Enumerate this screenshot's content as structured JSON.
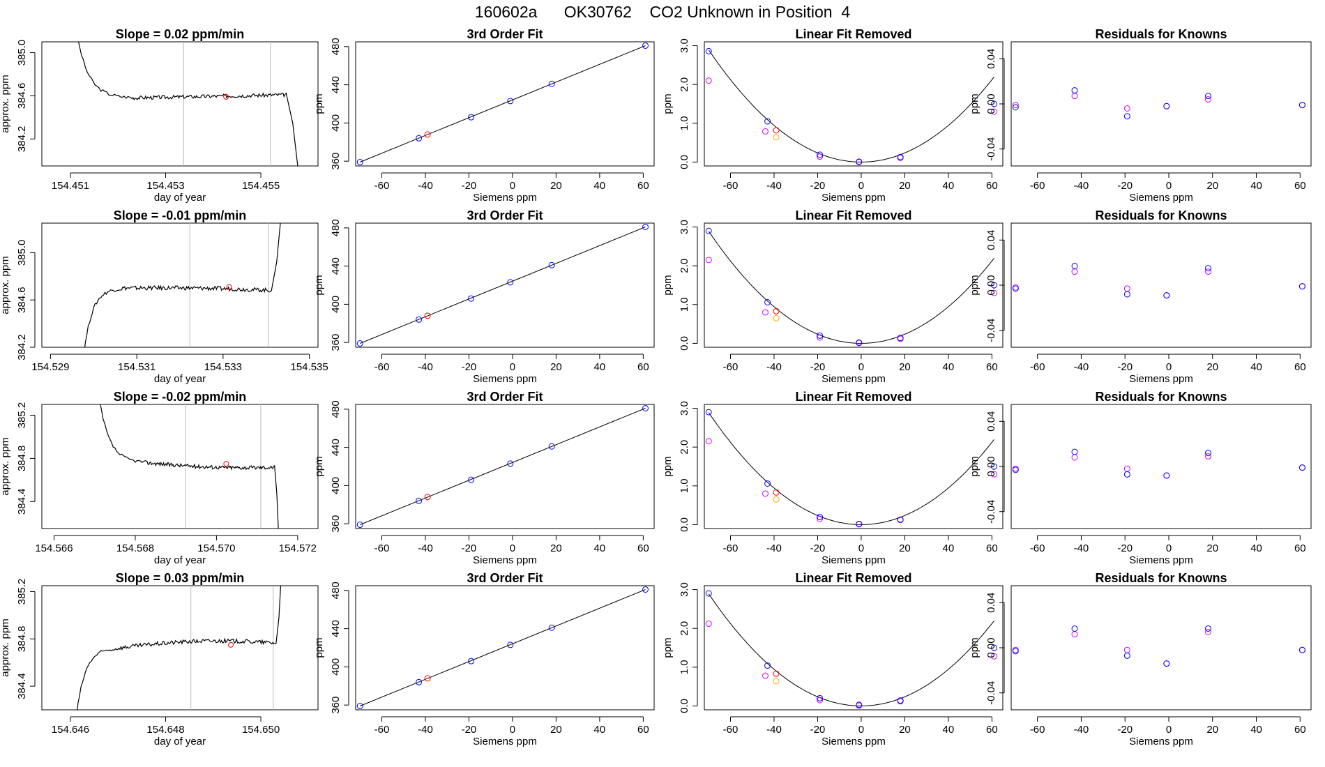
{
  "figure": {
    "title": "160602a      OK30762    CO2 Unknown in Position  4"
  },
  "colors": {
    "known": "#0000ff",
    "unknown": "#ff0000",
    "known_first_run": "#d400ff",
    "unknown_first_run": "#ffa500",
    "trace": "#000000",
    "window_line": "#bbbbbb"
  },
  "chart_data": [
    {
      "type": "line",
      "row": 1,
      "col": 1,
      "title": "Slope =  0.02  ppm/min",
      "xlabel": "day of year",
      "ylabel": "approx. ppm",
      "xlim": [
        154.4504,
        154.4562
      ],
      "ylim": [
        383.95,
        385.1
      ],
      "xticks": [
        154.451,
        154.453,
        154.455
      ],
      "xtick_labels": [
        "154.451",
        "154.453",
        "154.455"
      ],
      "yticks": [
        384.2,
        384.6,
        385.0
      ],
      "ytick_labels": [
        "384.2",
        "384.6",
        "385.0"
      ],
      "vlines": [
        154.45338,
        154.4552
      ],
      "marker": {
        "x": 154.45427,
        "y": 384.59
      },
      "trace_shape": "descend",
      "trace": {
        "start": 154.45103,
        "settle": 154.45225,
        "level": 384.58,
        "rise": 0.0,
        "end": 154.45553,
        "end_level": 384.61,
        "exit": 154.45588
      }
    },
    {
      "type": "line",
      "row": 2,
      "col": 1,
      "title": "Slope =  -0.01  ppm/min",
      "xlabel": "day of year",
      "ylabel": "approx. ppm",
      "xlim": [
        154.5288,
        154.5352
      ],
      "ylim": [
        384.2,
        385.25
      ],
      "xticks": [
        154.529,
        154.531,
        154.533,
        154.535
      ],
      "xtick_labels": [
        "154.529",
        "154.531",
        "154.533",
        "154.535"
      ],
      "yticks": [
        384.2,
        384.6,
        385.0
      ],
      "ytick_labels": [
        "384.2",
        "384.6",
        "385.0"
      ],
      "vlines": [
        154.53223,
        154.53405
      ],
      "marker": {
        "x": 154.53314,
        "y": 384.71
      },
      "trace_shape": "ascend",
      "trace": {
        "start": 154.52968,
        "settle": 154.53065,
        "level": 384.7,
        "rise": 0.01,
        "end": 154.53412,
        "end_level": 384.68,
        "exit": 154.53443
      }
    },
    {
      "type": "line",
      "row": 3,
      "col": 1,
      "title": "Slope =  -0.02  ppm/min",
      "xlabel": "day of year",
      "ylabel": "approx. ppm",
      "xlim": [
        154.5657,
        154.5725
      ],
      "ylim": [
        384.15,
        385.3
      ],
      "xticks": [
        154.566,
        154.568,
        154.57,
        154.572
      ],
      "xtick_labels": [
        "154.566",
        "154.568",
        "154.570",
        "154.572"
      ],
      "yticks": [
        384.4,
        384.8,
        385.2
      ],
      "ytick_labels": [
        "384.4",
        "384.8",
        "385.2"
      ],
      "vlines": [
        154.56924,
        154.57109
      ],
      "marker": {
        "x": 154.57024,
        "y": 384.75
      },
      "trace_shape": "descend",
      "trace": {
        "start": 154.567,
        "settle": 154.56825,
        "level": 384.76,
        "rise": -0.02,
        "end": 154.57143,
        "end_level": 384.72,
        "exit": 154.57157
      }
    },
    {
      "type": "line",
      "row": 4,
      "col": 1,
      "title": "Slope =  0.03  ppm/min",
      "xlabel": "day of year",
      "ylabel": "approx. ppm",
      "xlim": [
        154.6454,
        154.6512
      ],
      "ylim": [
        384.2,
        385.25
      ],
      "xticks": [
        154.646,
        154.648,
        154.65
      ],
      "xtick_labels": [
        "154.646",
        "154.648",
        "154.650"
      ],
      "yticks": [
        384.4,
        384.8,
        385.2
      ],
      "ytick_labels": [
        "384.4",
        "384.8",
        "385.2"
      ],
      "vlines": [
        154.64853,
        154.65026
      ],
      "marker": {
        "x": 154.64937,
        "y": 384.75
      },
      "trace_shape": "ascend",
      "trace": {
        "start": 154.64604,
        "settle": 154.64695,
        "level": 384.72,
        "rise": 0.04,
        "end": 154.65032,
        "end_level": 384.76,
        "exit": 154.65047
      }
    },
    {
      "type": "scatter",
      "row": 1,
      "col": 2,
      "title": "3rd Order Fit",
      "xlabel": "Siemens ppm",
      "ylabel": "ppm",
      "xlim": [
        -72,
        65
      ],
      "ylim": [
        355,
        485
      ],
      "xticks": [
        -60,
        -40,
        -20,
        0,
        20,
        40,
        60
      ],
      "yticks": [
        360,
        400,
        440,
        480
      ],
      "fit_line": {
        "x": [
          -70,
          61
        ],
        "y": [
          359,
          481
        ]
      },
      "series": [
        {
          "role": "known",
          "x": [
            -70,
            -43,
            -19,
            -1,
            18,
            61
          ],
          "y": [
            359,
            384,
            406,
            423,
            441,
            481
          ]
        },
        {
          "role": "unknown",
          "x": [
            -39
          ],
          "y": [
            388
          ]
        }
      ]
    },
    {
      "type": "scatter",
      "row": 2,
      "col": 2,
      "title": "3rd Order Fit",
      "xlabel": "Siemens ppm",
      "ylabel": "ppm",
      "xlim": [
        -72,
        65
      ],
      "ylim": [
        355,
        485
      ],
      "xticks": [
        -60,
        -40,
        -20,
        0,
        20,
        40,
        60
      ],
      "yticks": [
        360,
        400,
        440,
        480
      ],
      "fit_line": {
        "x": [
          -70,
          61
        ],
        "y": [
          359,
          481
        ]
      },
      "series": [
        {
          "role": "known",
          "x": [
            -70,
            -43,
            -19,
            -1,
            18,
            61
          ],
          "y": [
            359,
            384,
            406,
            423,
            441,
            481
          ]
        },
        {
          "role": "unknown",
          "x": [
            -39
          ],
          "y": [
            388
          ]
        }
      ]
    },
    {
      "type": "scatter",
      "row": 3,
      "col": 2,
      "title": "3rd Order Fit",
      "xlabel": "Siemens ppm",
      "ylabel": "ppm",
      "xlim": [
        -72,
        65
      ],
      "ylim": [
        355,
        485
      ],
      "xticks": [
        -60,
        -40,
        -20,
        0,
        20,
        40,
        60
      ],
      "yticks": [
        360,
        400,
        440,
        480
      ],
      "fit_line": {
        "x": [
          -70,
          61
        ],
        "y": [
          359,
          481
        ]
      },
      "series": [
        {
          "role": "known",
          "x": [
            -70,
            -43,
            -19,
            -1,
            18,
            61
          ],
          "y": [
            359,
            384,
            406,
            423,
            441,
            481
          ]
        },
        {
          "role": "unknown",
          "x": [
            -39
          ],
          "y": [
            388
          ]
        }
      ]
    },
    {
      "type": "scatter",
      "row": 4,
      "col": 2,
      "title": "3rd Order Fit",
      "xlabel": "Siemens ppm",
      "ylabel": "ppm",
      "xlim": [
        -72,
        65
      ],
      "ylim": [
        355,
        485
      ],
      "xticks": [
        -60,
        -40,
        -20,
        0,
        20,
        40,
        60
      ],
      "yticks": [
        360,
        400,
        440,
        480
      ],
      "fit_line": {
        "x": [
          -70,
          61
        ],
        "y": [
          359,
          481
        ]
      },
      "series": [
        {
          "role": "known",
          "x": [
            -70,
            -43,
            -19,
            -1,
            18,
            61
          ],
          "y": [
            359,
            384,
            406,
            423,
            441,
            481
          ]
        },
        {
          "role": "unknown",
          "x": [
            -39
          ],
          "y": [
            388
          ]
        }
      ]
    },
    {
      "type": "scatter",
      "row": 1,
      "col": 3,
      "title": "Linear Fit Removed",
      "xlabel": "Siemens ppm",
      "ylabel": "ppm",
      "xlim": [
        -72,
        65
      ],
      "ylim": [
        -0.1,
        3.1
      ],
      "xticks": [
        -60,
        -40,
        -20,
        0,
        20,
        40,
        60
      ],
      "yticks": [
        0.0,
        1.0,
        2.0,
        3.0
      ],
      "ytick_labels": [
        "0.0",
        "1.0",
        "2.0",
        "3.0"
      ],
      "fit_curve": {
        "type": "quadratic",
        "vertex": [
          0,
          0.0
        ],
        "a": 0.00059
      },
      "series": [
        {
          "role": "known",
          "x": [
            -70,
            -43,
            -19,
            -1,
            18,
            61
          ],
          "y": [
            2.86,
            1.05,
            0.19,
            0.01,
            0.13,
            1.5
          ]
        },
        {
          "role": "unknown",
          "x": [
            -39
          ],
          "y": [
            0.82
          ]
        },
        {
          "role": "known_first_run",
          "x": [
            -70,
            -44,
            -19,
            -1,
            18,
            61
          ],
          "y": [
            2.1,
            0.79,
            0.14,
            0.0,
            0.11,
            1.3
          ]
        },
        {
          "role": "unknown_first_run",
          "x": [
            -39
          ],
          "y": [
            0.64
          ]
        }
      ]
    },
    {
      "type": "scatter",
      "row": 2,
      "col": 3,
      "title": "Linear Fit Removed",
      "xlabel": "Siemens ppm",
      "ylabel": "ppm",
      "xlim": [
        -72,
        65
      ],
      "ylim": [
        -0.1,
        3.1
      ],
      "xticks": [
        -60,
        -40,
        -20,
        0,
        20,
        40,
        60
      ],
      "yticks": [
        0.0,
        1.0,
        2.0,
        3.0
      ],
      "ytick_labels": [
        "0.0",
        "1.0",
        "2.0",
        "3.0"
      ],
      "fit_curve": {
        "type": "quadratic",
        "vertex": [
          0,
          0.0
        ],
        "a": 0.00059
      },
      "series": [
        {
          "role": "known",
          "x": [
            -70,
            -43,
            -19,
            -1,
            18,
            61
          ],
          "y": [
            2.9,
            1.06,
            0.2,
            0.02,
            0.14,
            1.5
          ]
        },
        {
          "role": "unknown",
          "x": [
            -39
          ],
          "y": [
            0.83
          ]
        },
        {
          "role": "known_first_run",
          "x": [
            -70,
            -44,
            -19,
            -1,
            18,
            61
          ],
          "y": [
            2.15,
            0.8,
            0.15,
            0.01,
            0.12,
            1.3
          ]
        },
        {
          "role": "unknown_first_run",
          "x": [
            -39
          ],
          "y": [
            0.65
          ]
        }
      ]
    },
    {
      "type": "scatter",
      "row": 3,
      "col": 3,
      "title": "Linear Fit Removed",
      "xlabel": "Siemens ppm",
      "ylabel": "ppm",
      "xlim": [
        -72,
        65
      ],
      "ylim": [
        -0.1,
        3.1
      ],
      "xticks": [
        -60,
        -40,
        -20,
        0,
        20,
        40,
        60
      ],
      "yticks": [
        0.0,
        1.0,
        2.0,
        3.0
      ],
      "ytick_labels": [
        "0.0",
        "1.0",
        "2.0",
        "3.0"
      ],
      "fit_curve": {
        "type": "quadratic",
        "vertex": [
          0,
          0.0
        ],
        "a": 0.00059
      },
      "series": [
        {
          "role": "known",
          "x": [
            -70,
            -43,
            -19,
            -1,
            18,
            61
          ],
          "y": [
            2.9,
            1.06,
            0.2,
            0.02,
            0.13,
            1.5
          ]
        },
        {
          "role": "unknown",
          "x": [
            -39
          ],
          "y": [
            0.83
          ]
        },
        {
          "role": "known_first_run",
          "x": [
            -70,
            -44,
            -19,
            -1,
            18,
            61
          ],
          "y": [
            2.15,
            0.8,
            0.15,
            0.01,
            0.12,
            1.3
          ]
        },
        {
          "role": "unknown_first_run",
          "x": [
            -39
          ],
          "y": [
            0.65
          ]
        }
      ]
    },
    {
      "type": "scatter",
      "row": 4,
      "col": 3,
      "title": "Linear Fit Removed",
      "xlabel": "Siemens ppm",
      "ylabel": "ppm",
      "xlim": [
        -72,
        65
      ],
      "ylim": [
        -0.1,
        3.1
      ],
      "xticks": [
        -60,
        -40,
        -20,
        0,
        20,
        40,
        60
      ],
      "yticks": [
        0.0,
        1.0,
        2.0,
        3.0
      ],
      "ytick_labels": [
        "0.0",
        "1.0",
        "2.0",
        "3.0"
      ],
      "fit_curve": {
        "type": "quadratic",
        "vertex": [
          0,
          0.0
        ],
        "a": 0.00059
      },
      "series": [
        {
          "role": "known",
          "x": [
            -70,
            -43,
            -19,
            -1,
            18,
            61
          ],
          "y": [
            2.9,
            1.04,
            0.2,
            0.03,
            0.14,
            1.5
          ]
        },
        {
          "role": "unknown",
          "x": [
            -39
          ],
          "y": [
            0.83
          ]
        },
        {
          "role": "known_first_run",
          "x": [
            -70,
            -44,
            -19,
            -1,
            18,
            61
          ],
          "y": [
            2.12,
            0.78,
            0.15,
            0.01,
            0.12,
            1.28
          ]
        },
        {
          "role": "unknown_first_run",
          "x": [
            -39
          ],
          "y": [
            0.64
          ]
        }
      ]
    },
    {
      "type": "scatter",
      "row": 1,
      "col": 4,
      "title": "Residuals for Knowns",
      "xlabel": "Siemens ppm",
      "ylabel": "ppm",
      "xlim": [
        -72,
        65
      ],
      "ylim": [
        -0.055,
        0.055
      ],
      "xticks": [
        -60,
        -40,
        -20,
        0,
        20,
        40,
        60
      ],
      "yticks": [
        -0.04,
        0.0,
        0.04
      ],
      "ytick_labels": [
        "-0.04",
        "0.00",
        "0.04"
      ],
      "series": [
        {
          "role": "known",
          "x": [
            -70,
            -43,
            -19,
            -1,
            18,
            61
          ],
          "y": [
            -0.003,
            0.012,
            -0.011,
            -0.002,
            0.007,
            -0.001
          ]
        },
        {
          "role": "known_first_run",
          "x": [
            -70,
            -43,
            -19,
            -1,
            18,
            61
          ],
          "y": [
            -0.001,
            0.007,
            -0.004,
            -0.002,
            0.004,
            -0.001
          ]
        }
      ]
    },
    {
      "type": "scatter",
      "row": 2,
      "col": 4,
      "title": "Residuals for Knowns",
      "xlabel": "Siemens ppm",
      "ylabel": "ppm",
      "xlim": [
        -72,
        65
      ],
      "ylim": [
        -0.055,
        0.055
      ],
      "xticks": [
        -60,
        -40,
        -20,
        0,
        20,
        40,
        60
      ],
      "yticks": [
        -0.04,
        0.0,
        0.04
      ],
      "ytick_labels": [
        "-0.04",
        "0.00",
        "0.04"
      ],
      "series": [
        {
          "role": "known",
          "x": [
            -70,
            -43,
            -19,
            -1,
            18,
            61
          ],
          "y": [
            -0.003,
            0.017,
            -0.008,
            -0.009,
            0.015,
            -0.001
          ]
        },
        {
          "role": "known_first_run",
          "x": [
            -70,
            -43,
            -19,
            -1,
            18,
            61
          ],
          "y": [
            -0.002,
            0.012,
            -0.003,
            -0.009,
            0.012,
            -0.001
          ]
        }
      ]
    },
    {
      "type": "scatter",
      "row": 3,
      "col": 4,
      "title": "Residuals for Knowns",
      "xlabel": "Siemens ppm",
      "ylabel": "ppm",
      "xlim": [
        -72,
        65
      ],
      "ylim": [
        -0.055,
        0.055
      ],
      "xticks": [
        -60,
        -40,
        -20,
        0,
        20,
        40,
        60
      ],
      "yticks": [
        -0.04,
        0.0,
        0.04
      ],
      "ytick_labels": [
        "-0.04",
        "0.00",
        "0.04"
      ],
      "series": [
        {
          "role": "known",
          "x": [
            -70,
            -43,
            -19,
            -1,
            18,
            61
          ],
          "y": [
            -0.003,
            0.013,
            -0.007,
            -0.008,
            0.012,
            -0.001
          ]
        },
        {
          "role": "known_first_run",
          "x": [
            -70,
            -43,
            -19,
            -1,
            18,
            61
          ],
          "y": [
            -0.002,
            0.008,
            -0.002,
            -0.008,
            0.009,
            -0.001
          ]
        }
      ]
    },
    {
      "type": "scatter",
      "row": 4,
      "col": 4,
      "title": "Residuals for Knowns",
      "xlabel": "Siemens ppm",
      "ylabel": "ppm",
      "xlim": [
        -72,
        65
      ],
      "ylim": [
        -0.055,
        0.055
      ],
      "xticks": [
        -60,
        -40,
        -20,
        0,
        20,
        40,
        60
      ],
      "yticks": [
        -0.04,
        0.0,
        0.04
      ],
      "ytick_labels": [
        "-0.04",
        "0.00",
        "0.04"
      ],
      "series": [
        {
          "role": "known",
          "x": [
            -70,
            -43,
            -19,
            -1,
            18,
            61
          ],
          "y": [
            -0.003,
            0.017,
            -0.007,
            -0.014,
            0.017,
            -0.002
          ]
        },
        {
          "role": "known_first_run",
          "x": [
            -70,
            -43,
            -19,
            -1,
            18,
            61
          ],
          "y": [
            -0.002,
            0.012,
            -0.002,
            -0.014,
            0.014,
            -0.002
          ]
        }
      ]
    }
  ]
}
